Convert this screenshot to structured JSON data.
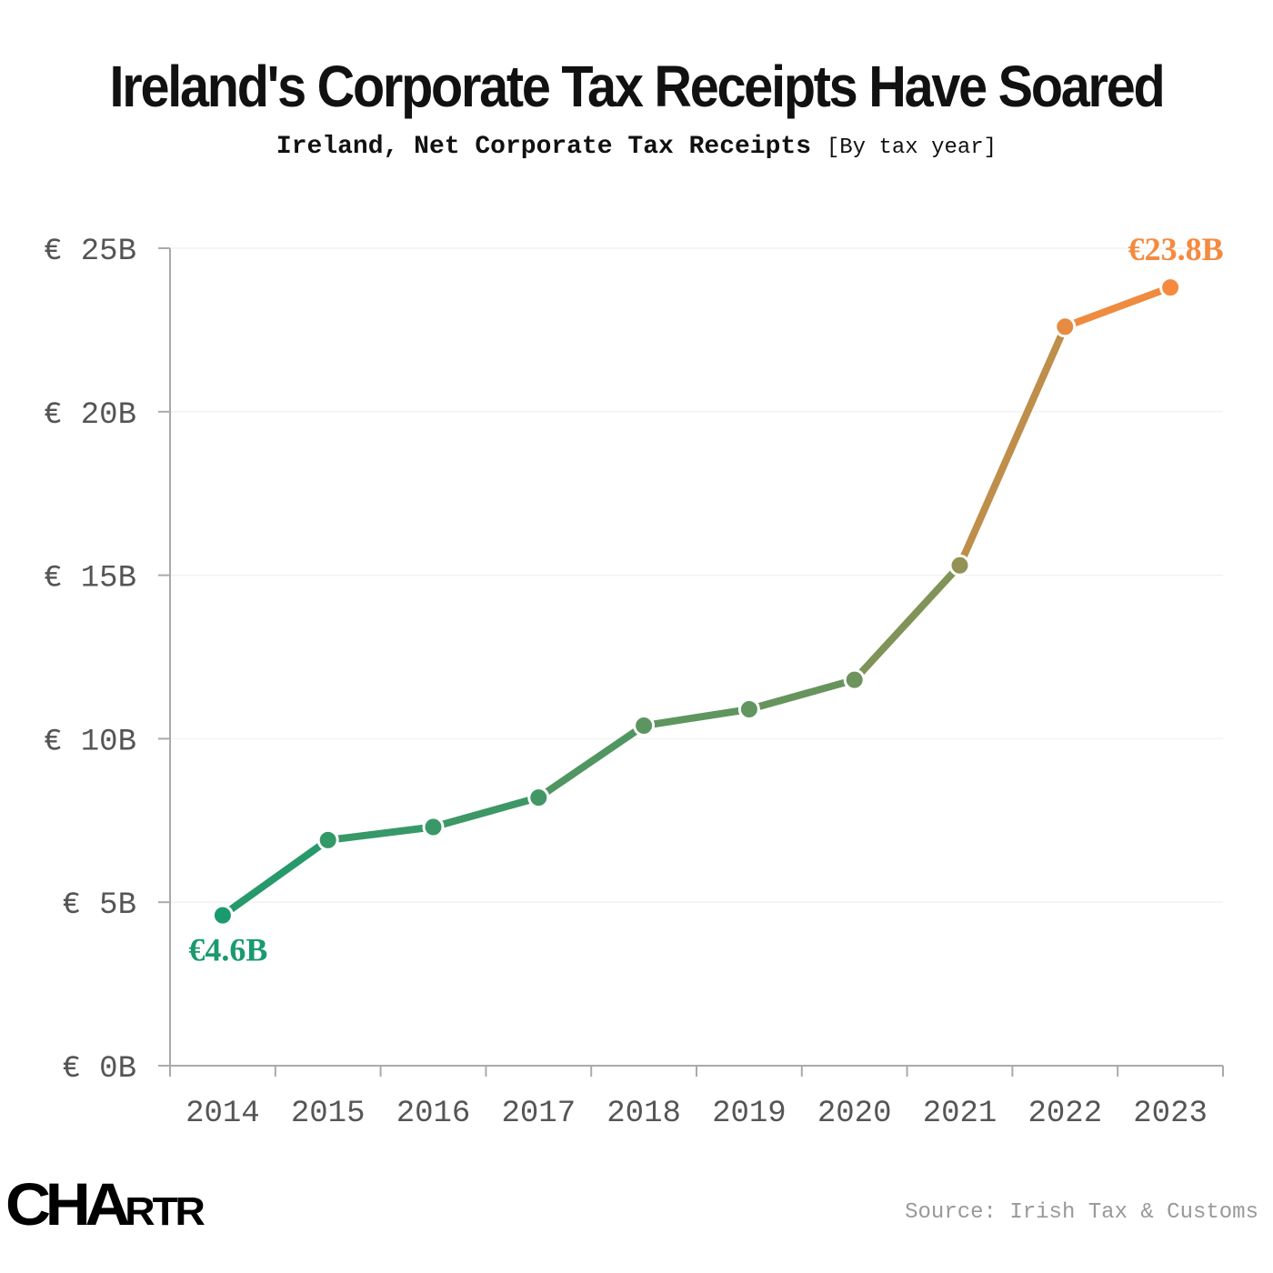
{
  "title": "Ireland's Corporate Tax Receipts Have Soared",
  "subtitle_main": "Ireland, Net Corporate Tax Receipts",
  "subtitle_note": "[By tax year]",
  "logo": "CHARTR",
  "source": "Source: Irish Tax & Customs",
  "colors": {
    "start": "#1a9a6e",
    "end": "#f58a3f"
  },
  "chart_data": {
    "type": "line",
    "title": "Ireland's Corporate Tax Receipts Have Soared",
    "categories": [
      "2014",
      "2015",
      "2016",
      "2017",
      "2018",
      "2019",
      "2020",
      "2021",
      "2022",
      "2023"
    ],
    "values": [
      4.6,
      6.9,
      7.3,
      8.2,
      10.4,
      10.9,
      11.8,
      15.3,
      22.6,
      23.8
    ],
    "unit": "€ billions",
    "ylim": [
      0,
      25
    ],
    "yticks": [
      0,
      5,
      10,
      15,
      20,
      25
    ],
    "ytick_labels": [
      "€  0B",
      "€  5B",
      "€ 10B",
      "€ 15B",
      "€ 20B",
      "€ 25B"
    ],
    "grid": true,
    "annotations": {
      "first": "€4.6B",
      "last": "€23.8B"
    }
  }
}
